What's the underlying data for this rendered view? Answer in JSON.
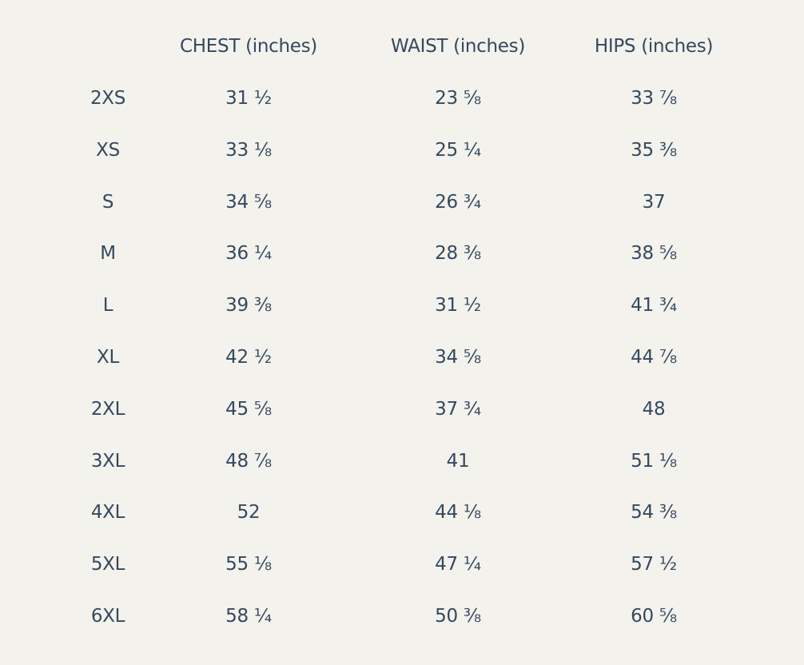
{
  "table": {
    "header": [
      "CHEST (inches)",
      "WAIST (inches)",
      "HIPS (inches)"
    ],
    "rows": [
      [
        "2XS",
        "31 ½",
        "23 ⅝",
        "33 ⅞"
      ],
      [
        "XS",
        "33 ⅛",
        "25 ¼",
        "35 ⅜"
      ],
      [
        "S",
        "34 ⅝",
        "26 ¾",
        "37"
      ],
      [
        "M",
        "36 ¼",
        "28 ⅜",
        "38 ⅝"
      ],
      [
        "L",
        "39 ⅜",
        "31 ½",
        "41 ¾"
      ],
      [
        "XL",
        "42 ½",
        "34 ⅝",
        "44 ⅞"
      ],
      [
        "2XL",
        "45 ⅝",
        "37 ¾",
        "48"
      ],
      [
        "3XL",
        "48 ⅞",
        "41",
        "51 ⅛"
      ],
      [
        "4XL",
        "52",
        "44 ⅛",
        "54 ⅜"
      ],
      [
        "5XL",
        "55 ⅛",
        "47 ¼",
        "57 ½"
      ],
      [
        "6XL",
        "58 ¼",
        "50 ⅜",
        "60 ⅝"
      ]
    ]
  }
}
